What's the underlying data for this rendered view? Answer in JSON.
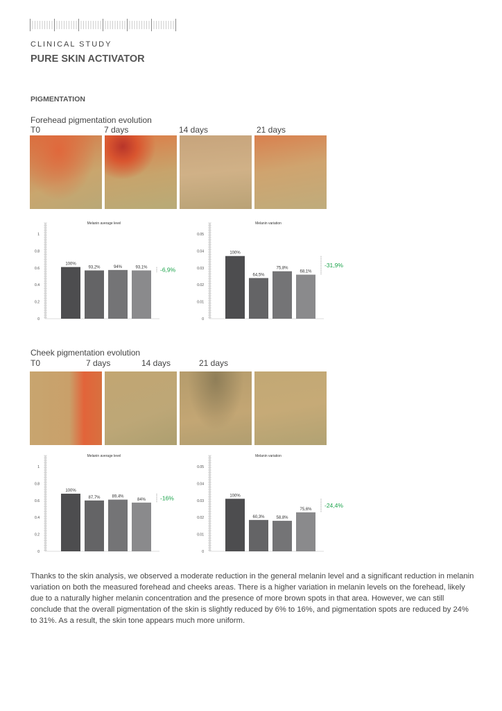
{
  "header": {
    "kicker": "CLINICAL STUDY",
    "title": "PURE SKIN ACTIVATOR"
  },
  "section": "PIGMENTATION",
  "forehead": {
    "title": "Forehead pigmentation evolution",
    "timepoints": [
      "T0",
      "7 days",
      "14 days",
      "21 days"
    ]
  },
  "cheek": {
    "title": "Cheek pigmentation evolution",
    "timepoints": [
      "T0",
      "7 days",
      "14 days",
      "21 days"
    ]
  },
  "colors": {
    "bars": [
      "#4d4d4f",
      "#646466",
      "#747476",
      "#8a8a8c"
    ],
    "delta": "#1aa34a"
  },
  "chart_data": [
    {
      "type": "bar",
      "title": "Melanin average level",
      "ylim": [
        0,
        1
      ],
      "yticks": [
        "0",
        "0.2",
        "0.4",
        "0.6",
        "0.8",
        "1"
      ],
      "tickvals": [
        0,
        0.2,
        0.4,
        0.6,
        0.8,
        1
      ],
      "categories": [
        "T0",
        "7 days",
        "14 days",
        "21 days"
      ],
      "values": [
        0.61,
        0.57,
        0.575,
        0.57
      ],
      "labels": [
        "100%",
        "93,2%",
        "94%",
        "93,1%"
      ],
      "delta": "-6,9%"
    },
    {
      "type": "bar",
      "title": "Melanin variation",
      "ylim": [
        0,
        0.05
      ],
      "yticks": [
        "0",
        "0.01",
        "0.02",
        "0.03",
        "0.04",
        "0.05"
      ],
      "tickvals": [
        0,
        0.01,
        0.02,
        0.03,
        0.04,
        0.05
      ],
      "categories": [
        "T0",
        "7 days",
        "14 days",
        "21 days"
      ],
      "values": [
        0.037,
        0.024,
        0.028,
        0.026
      ],
      "labels": [
        "100%",
        "64,5%",
        "75,8%",
        "68,1%"
      ],
      "delta": "-31,9%"
    },
    {
      "type": "bar",
      "title": "Melanin average level",
      "ylim": [
        0,
        1
      ],
      "yticks": [
        "0",
        "0.2",
        "0.4",
        "0.6",
        "0.8",
        "1"
      ],
      "tickvals": [
        0,
        0.2,
        0.4,
        0.6,
        0.8,
        1
      ],
      "categories": [
        "T0",
        "7 days",
        "14 days",
        "21 days"
      ],
      "values": [
        0.68,
        0.6,
        0.61,
        0.575
      ],
      "labels": [
        "100%",
        "87,7%",
        "89,4%",
        "84%"
      ],
      "delta": "-16%"
    },
    {
      "type": "bar",
      "title": "Melanin variation",
      "ylim": [
        0,
        0.05
      ],
      "yticks": [
        "0",
        "0.01",
        "0.02",
        "0.03",
        "0.04",
        "0.05"
      ],
      "tickvals": [
        0,
        0.01,
        0.02,
        0.03,
        0.04,
        0.05
      ],
      "categories": [
        "T0",
        "7 days",
        "14 days",
        "21 days"
      ],
      "values": [
        0.031,
        0.0185,
        0.018,
        0.023
      ],
      "labels": [
        "100%",
        "60,3%",
        "58,8%",
        "75,6%"
      ],
      "delta": "-24,4%"
    }
  ],
  "conclusion": "Thanks to the skin analysis, we observed a moderate reduction in the general melanin level and a significant reduction in melanin variation on both the measured forehead and cheeks areas. There is a higher variation in melanin levels on the forehead, likely due to a naturally higher melanin concentration and the presence of more brown spots in that area. However, we can still conclude that the overall pigmentation of the skin is slightly reduced by 6% to 16%, and pigmentation spots are reduced by 24% to 31%. As a result, the skin tone appears much more uniform."
}
